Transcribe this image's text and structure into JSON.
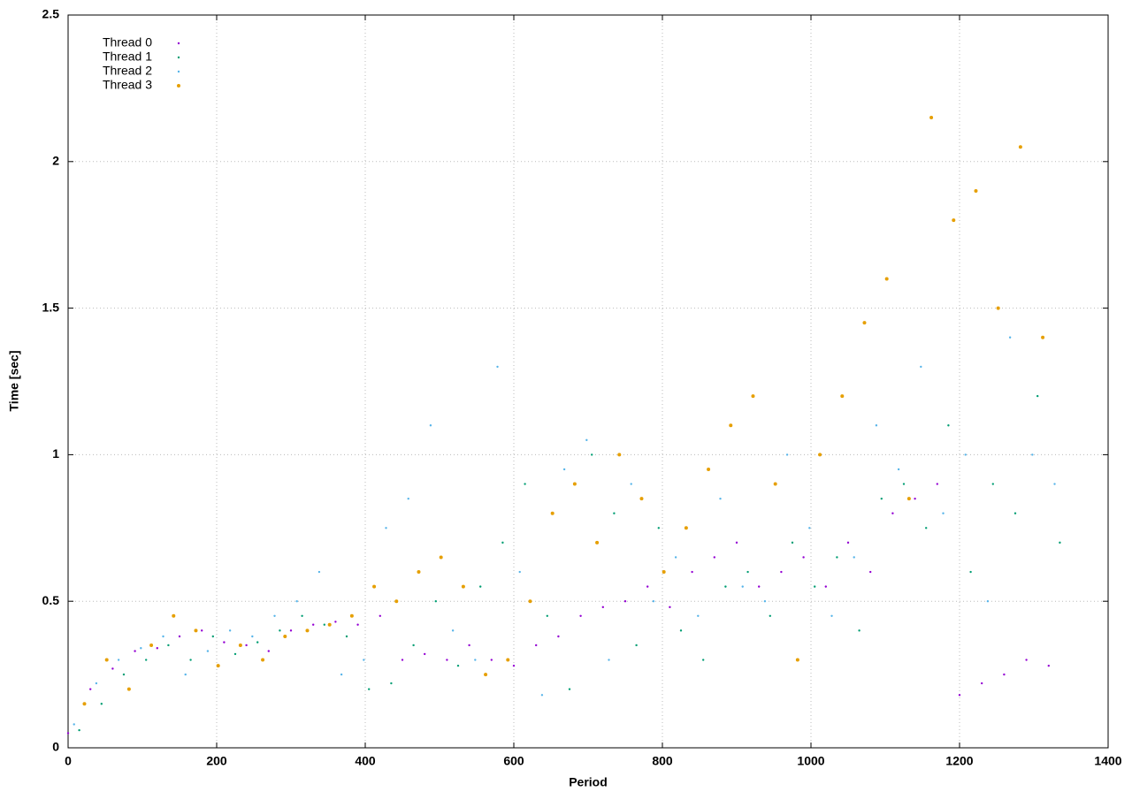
{
  "chart_data": {
    "type": "scatter",
    "xlabel": "Period",
    "ylabel": "Time [sec]",
    "xlim": [
      0,
      1400
    ],
    "xticks": [
      0,
      200,
      400,
      600,
      800,
      1000,
      1200,
      1400
    ],
    "ylim": [
      0,
      2.5
    ],
    "yticks": [
      0,
      0.5,
      1,
      1.5,
      2,
      2.5
    ],
    "grid": true,
    "legend": "top-left",
    "series": [
      {
        "name": "Thread 0",
        "color": "#9400d3",
        "size": 1.2,
        "x": [
          0,
          30,
          60,
          90,
          120,
          150,
          180,
          210,
          240,
          270,
          300,
          330,
          360,
          390,
          420,
          450,
          480,
          510,
          540,
          570,
          600,
          630,
          660,
          690,
          720,
          750,
          780,
          810,
          840,
          870,
          900,
          930,
          960,
          990,
          1020,
          1050,
          1080,
          1110,
          1140,
          1170,
          1200,
          1230,
          1260,
          1290,
          1320
        ],
        "values": [
          0.05,
          0.2,
          0.27,
          0.33,
          0.34,
          0.38,
          0.4,
          0.36,
          0.35,
          0.33,
          0.4,
          0.42,
          0.43,
          0.42,
          0.45,
          0.3,
          0.32,
          0.3,
          0.35,
          0.3,
          0.28,
          0.35,
          0.38,
          0.45,
          0.48,
          0.5,
          0.55,
          0.48,
          0.6,
          0.65,
          0.7,
          0.55,
          0.6,
          0.65,
          0.55,
          0.7,
          0.6,
          0.8,
          0.85,
          0.9,
          0.18,
          0.22,
          0.25,
          0.3,
          0.28
        ]
      },
      {
        "name": "Thread 1",
        "color": "#009e73",
        "size": 1.2,
        "x": [
          15,
          45,
          75,
          105,
          135,
          165,
          195,
          225,
          255,
          285,
          315,
          345,
          375,
          405,
          435,
          465,
          495,
          525,
          555,
          585,
          615,
          645,
          675,
          705,
          735,
          765,
          795,
          825,
          855,
          885,
          915,
          945,
          975,
          1005,
          1035,
          1065,
          1095,
          1125,
          1155,
          1185,
          1215,
          1245,
          1275,
          1305,
          1335
        ],
        "values": [
          0.06,
          0.15,
          0.25,
          0.3,
          0.35,
          0.3,
          0.38,
          0.32,
          0.36,
          0.4,
          0.45,
          0.42,
          0.38,
          0.2,
          0.22,
          0.35,
          0.5,
          0.28,
          0.55,
          0.7,
          0.9,
          0.45,
          0.2,
          1.0,
          0.8,
          0.35,
          0.75,
          0.4,
          0.3,
          0.55,
          0.6,
          0.45,
          0.7,
          0.55,
          0.65,
          0.4,
          0.85,
          0.9,
          0.75,
          1.1,
          0.6,
          0.9,
          0.8,
          1.2,
          0.7
        ]
      },
      {
        "name": "Thread 2",
        "color": "#56b4e9",
        "size": 1.2,
        "x": [
          8,
          38,
          68,
          98,
          128,
          158,
          188,
          218,
          248,
          278,
          308,
          338,
          368,
          398,
          428,
          458,
          488,
          518,
          548,
          578,
          608,
          638,
          668,
          698,
          728,
          758,
          788,
          818,
          848,
          878,
          908,
          938,
          968,
          998,
          1028,
          1058,
          1088,
          1118,
          1148,
          1178,
          1208,
          1238,
          1268,
          1298,
          1328
        ],
        "values": [
          0.08,
          0.22,
          0.3,
          0.34,
          0.38,
          0.25,
          0.33,
          0.4,
          0.38,
          0.45,
          0.5,
          0.6,
          0.25,
          0.3,
          0.75,
          0.85,
          1.1,
          0.4,
          0.3,
          1.3,
          0.6,
          0.18,
          0.95,
          1.05,
          0.3,
          0.9,
          0.5,
          0.65,
          0.45,
          0.85,
          0.55,
          0.5,
          1.0,
          0.75,
          0.45,
          0.65,
          1.1,
          0.95,
          1.3,
          0.8,
          1.0,
          0.5,
          1.4,
          1.0,
          0.9
        ]
      },
      {
        "name": "Thread 3",
        "color": "#e69f00",
        "size": 2,
        "x": [
          22,
          52,
          82,
          112,
          142,
          172,
          202,
          232,
          262,
          292,
          322,
          352,
          382,
          412,
          442,
          472,
          502,
          532,
          562,
          592,
          622,
          652,
          682,
          712,
          742,
          772,
          802,
          832,
          862,
          892,
          922,
          952,
          982,
          1012,
          1042,
          1072,
          1102,
          1132,
          1162,
          1192,
          1222,
          1252,
          1282,
          1312
        ],
        "values": [
          0.15,
          0.3,
          0.2,
          0.35,
          0.45,
          0.4,
          0.28,
          0.35,
          0.3,
          0.38,
          0.4,
          0.42,
          0.45,
          0.55,
          0.5,
          0.6,
          0.65,
          0.55,
          0.25,
          0.3,
          0.5,
          0.8,
          0.9,
          0.7,
          1.0,
          0.85,
          0.6,
          0.75,
          0.95,
          1.1,
          1.2,
          0.9,
          0.3,
          1.0,
          1.2,
          1.45,
          1.6,
          0.85,
          2.15,
          1.8,
          1.9,
          1.5,
          2.05,
          1.4
        ]
      }
    ]
  }
}
